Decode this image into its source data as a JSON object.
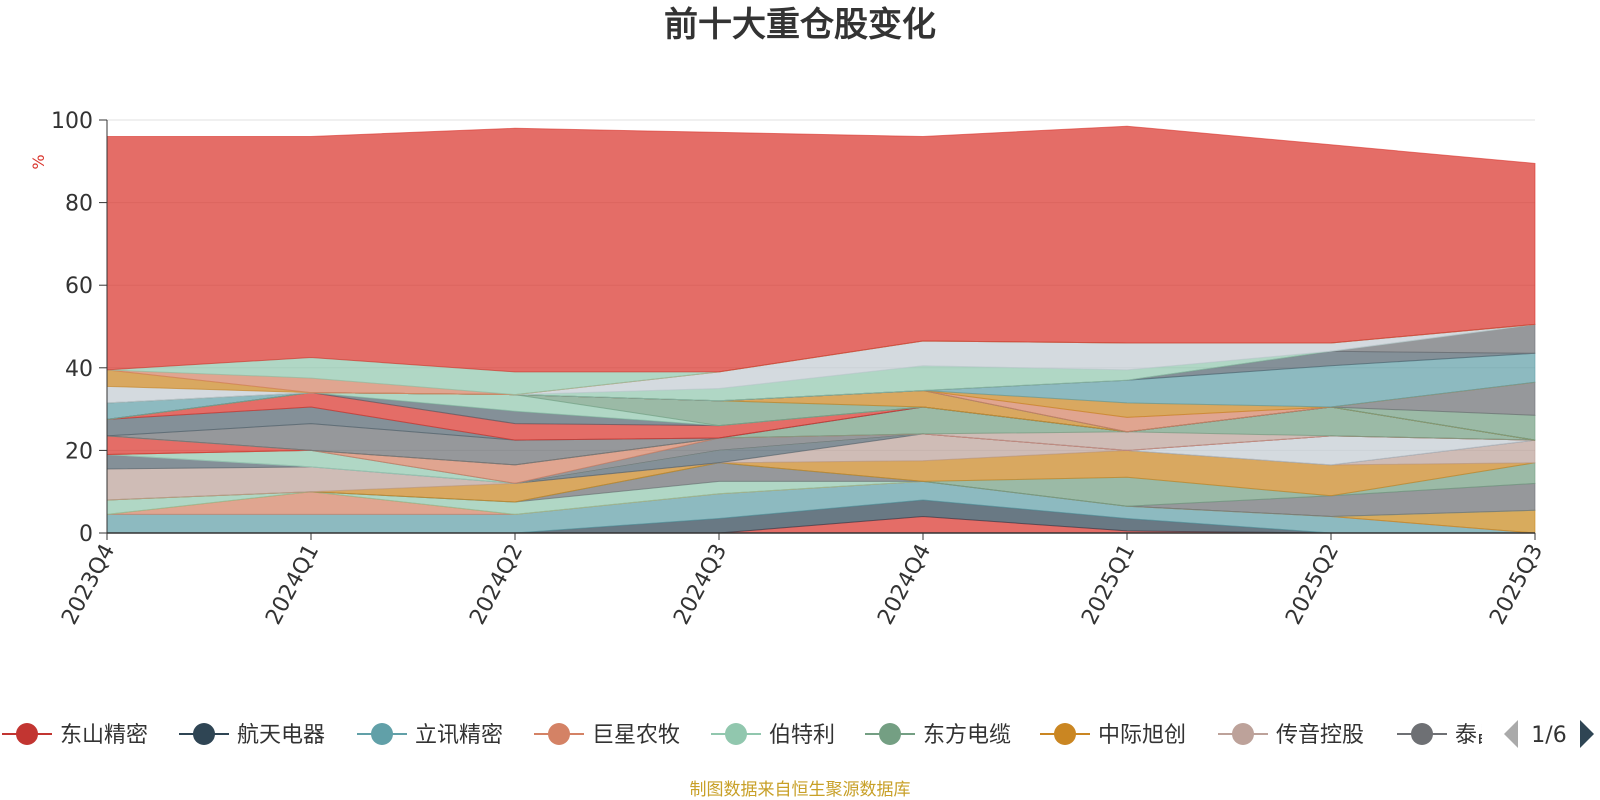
{
  "chart_data": {
    "type": "area",
    "title": "前十大重仓股变化",
    "ylabel": "%",
    "ylim": [
      0,
      100
    ],
    "yticks": [
      0,
      20,
      40,
      60,
      80,
      100
    ],
    "grid": true,
    "stacked": true,
    "categories": [
      "2023Q4",
      "2024Q1",
      "2024Q2",
      "2024Q3",
      "2024Q4",
      "2025Q1",
      "2025Q2",
      "2025Q3"
    ],
    "series": [
      {
        "name": "",
        "color": "#d9342c",
        "values": [
          0,
          0,
          0,
          0,
          4,
          0.5,
          0,
          0
        ]
      },
      {
        "name": "",
        "color": "#2f4554",
        "values": [
          0,
          0,
          0,
          3.5,
          4,
          3,
          0,
          0
        ]
      },
      {
        "name": "",
        "color": "#61a0a8",
        "values": [
          4.5,
          4.5,
          4.5,
          6,
          4.5,
          3,
          4,
          0
        ]
      },
      {
        "name": "",
        "color": "#d48265",
        "values": [
          0,
          5.5,
          0,
          0,
          0,
          0,
          0,
          0
        ]
      },
      {
        "name": "",
        "color": "#c98a1f",
        "values": [
          0,
          0,
          0,
          0,
          0,
          0,
          0,
          5.5
        ]
      },
      {
        "name": "",
        "color": "#91c7ae",
        "values": [
          3.5,
          0,
          3,
          3,
          0,
          0,
          0,
          0
        ]
      },
      {
        "name": "",
        "color": "#6e7074",
        "values": [
          0,
          0,
          0,
          4.5,
          0,
          0,
          5,
          6.5
        ]
      },
      {
        "name": "",
        "color": "#749f83",
        "values": [
          0,
          0,
          0,
          0,
          0,
          7,
          0,
          5
        ]
      },
      {
        "name": "",
        "color": "#ca8622",
        "values": [
          0,
          0,
          4.5,
          0,
          5,
          6.5,
          7.5,
          0
        ]
      },
      {
        "name": "",
        "color": "#bda29a",
        "values": [
          7.5,
          6,
          0,
          0,
          6.5,
          0,
          0,
          5.5
        ]
      },
      {
        "name": "",
        "color": "#546570",
        "values": [
          3.5,
          0,
          0,
          3,
          0,
          0,
          0,
          0
        ]
      },
      {
        "name": "",
        "color": "#c4ccd3",
        "values": [
          0,
          0,
          0,
          0,
          0,
          0,
          7,
          0
        ]
      },
      {
        "name": "",
        "color": "#91c7ae",
        "values": [
          0,
          4,
          0,
          0,
          0,
          0,
          0,
          0
        ]
      },
      {
        "name": "",
        "color": "#6e7074",
        "values": [
          0,
          0,
          0,
          3,
          0,
          0,
          0,
          0
        ]
      },
      {
        "name": "",
        "color": "#d48265",
        "values": [
          0,
          0,
          4.5,
          0,
          0,
          0,
          0,
          0
        ]
      },
      {
        "name": "",
        "color": "#d9342c",
        "values": [
          4.5,
          0,
          0,
          0,
          0,
          0,
          0,
          0
        ]
      },
      {
        "name": "",
        "color": "#bda29a",
        "values": [
          0,
          0,
          0,
          0,
          0,
          4.5,
          0,
          0
        ]
      },
      {
        "name": "",
        "color": "#749f83",
        "values": [
          0,
          0,
          0,
          0,
          6.5,
          0,
          7,
          0
        ]
      },
      {
        "name": "",
        "color": "#6e7074",
        "values": [
          0,
          6.5,
          6,
          0,
          0,
          0,
          0,
          0
        ]
      },
      {
        "name": "",
        "color": "#546570",
        "values": [
          4,
          4,
          0,
          0,
          0,
          0,
          0,
          0
        ]
      },
      {
        "name": "",
        "color": "#d9342c",
        "values": [
          0,
          3.5,
          4,
          3,
          0,
          0,
          0,
          0
        ]
      },
      {
        "name": "",
        "color": "#546570",
        "values": [
          0,
          0,
          3,
          0,
          0,
          0,
          0,
          0
        ]
      },
      {
        "name": "",
        "color": "#91c7ae",
        "values": [
          0,
          0,
          4,
          0,
          0,
          0,
          0,
          0
        ]
      },
      {
        "name": "",
        "color": "#749f83",
        "values": [
          0,
          0,
          0,
          6,
          0,
          0,
          0,
          0
        ]
      },
      {
        "name": "",
        "color": "#ca8622",
        "values": [
          0,
          0,
          0,
          0,
          4,
          0,
          0,
          0
        ]
      },
      {
        "name": "",
        "color": "#749f83",
        "values": [
          0,
          0,
          0,
          0,
          0,
          0,
          0,
          6
        ]
      },
      {
        "name": "",
        "color": "#6e7074",
        "values": [
          0,
          0,
          0,
          0,
          0,
          0,
          0,
          8
        ]
      },
      {
        "name": "",
        "color": "#d48265",
        "values": [
          0,
          0,
          0,
          0,
          0,
          3.5,
          0,
          0
        ]
      },
      {
        "name": "",
        "color": "#ca8622",
        "values": [
          0,
          0,
          0,
          0,
          0,
          3.5,
          0,
          0
        ]
      },
      {
        "name": "",
        "color": "#61a0a8",
        "values": [
          4,
          0,
          0,
          0,
          0,
          5.5,
          10,
          7
        ]
      },
      {
        "name": "",
        "color": "#546570",
        "values": [
          0,
          0,
          0,
          0,
          0,
          0,
          3.5,
          0
        ]
      },
      {
        "name": "",
        "color": "#6e7074",
        "values": [
          0,
          0,
          0,
          0,
          0,
          0,
          0,
          7
        ]
      },
      {
        "name": "",
        "color": "#91c7ae",
        "values": [
          0,
          0,
          0,
          3,
          6,
          2.5,
          0,
          0
        ]
      },
      {
        "name": "",
        "color": "#c4ccd3",
        "values": [
          4,
          0,
          0,
          4,
          6,
          6.5,
          2,
          0
        ]
      },
      {
        "name": "",
        "color": "#ca8622",
        "values": [
          4,
          0,
          0,
          0,
          0,
          0,
          0,
          0
        ]
      },
      {
        "name": "",
        "color": "#d48265",
        "values": [
          0,
          3.5,
          0,
          0,
          0,
          0,
          0,
          0
        ]
      },
      {
        "name": "",
        "color": "#91c7ae",
        "values": [
          0,
          5,
          5.5,
          0,
          0,
          0,
          0,
          0
        ]
      },
      {
        "name": "",
        "color": "#d9342c",
        "values": [
          56.5,
          53.5,
          59,
          58,
          49.5,
          52.5,
          48,
          39
        ]
      }
    ],
    "legend": {
      "position": "bottom",
      "page": "1/6",
      "items": [
        {
          "name": "东山精密",
          "color": "#c23531"
        },
        {
          "name": "航天电器",
          "color": "#2f4554"
        },
        {
          "name": "立讯精密",
          "color": "#61a0a8"
        },
        {
          "name": "巨星农牧",
          "color": "#d48265"
        },
        {
          "name": "伯特利",
          "color": "#91c7ae"
        },
        {
          "name": "东方电缆",
          "color": "#749f83"
        },
        {
          "name": "中际旭创",
          "color": "#ca8622"
        },
        {
          "name": "传音控股",
          "color": "#bda29a"
        },
        {
          "name": "泰晶科技",
          "color": "#6e7074"
        }
      ]
    }
  },
  "source_note": "制图数据来自恒生聚源数据库"
}
